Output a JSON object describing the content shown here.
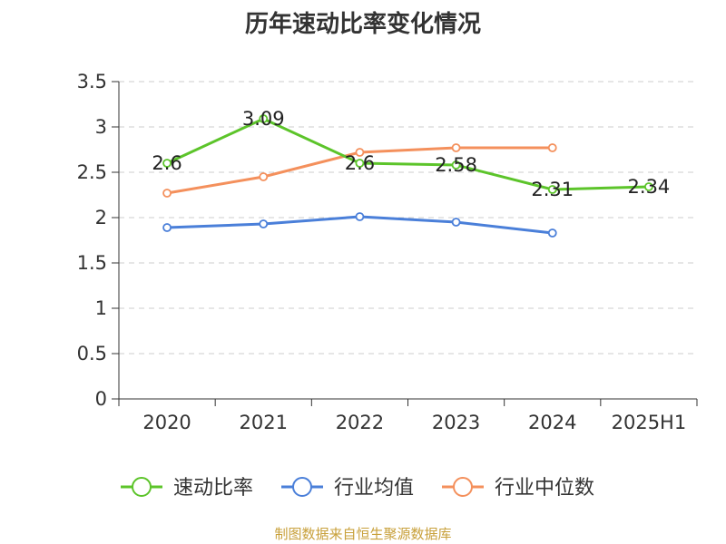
{
  "chart_data": {
    "type": "line",
    "title": "历年速动比率变化情况",
    "categories": [
      "2020",
      "2021",
      "2022",
      "2023",
      "2024",
      "2025H1"
    ],
    "ylim": [
      0,
      3.5
    ],
    "yticks": [
      0,
      0.5,
      1,
      1.5,
      2,
      2.5,
      3,
      3.5
    ],
    "ytick_labels": [
      "0",
      "0.5",
      "1",
      "1.5",
      "2",
      "2.5",
      "3",
      "3.5"
    ],
    "grid": true,
    "legend_position": "bottom",
    "series": [
      {
        "name": "速动比率",
        "color": "#5cc42a",
        "values": [
          2.6,
          3.09,
          2.6,
          2.58,
          2.31,
          2.34
        ],
        "labels": [
          "2.6",
          "3.09",
          "2.6",
          "2.58",
          "2.31",
          "2.34"
        ]
      },
      {
        "name": "行业均值",
        "color": "#4a7fd9",
        "values": [
          1.89,
          1.93,
          2.01,
          1.95,
          1.83,
          null
        ]
      },
      {
        "name": "行业中位数",
        "color": "#f4905c",
        "values": [
          2.27,
          2.45,
          2.72,
          2.77,
          2.77,
          null
        ]
      }
    ]
  },
  "footer": "制图数据来自恒生聚源数据库"
}
